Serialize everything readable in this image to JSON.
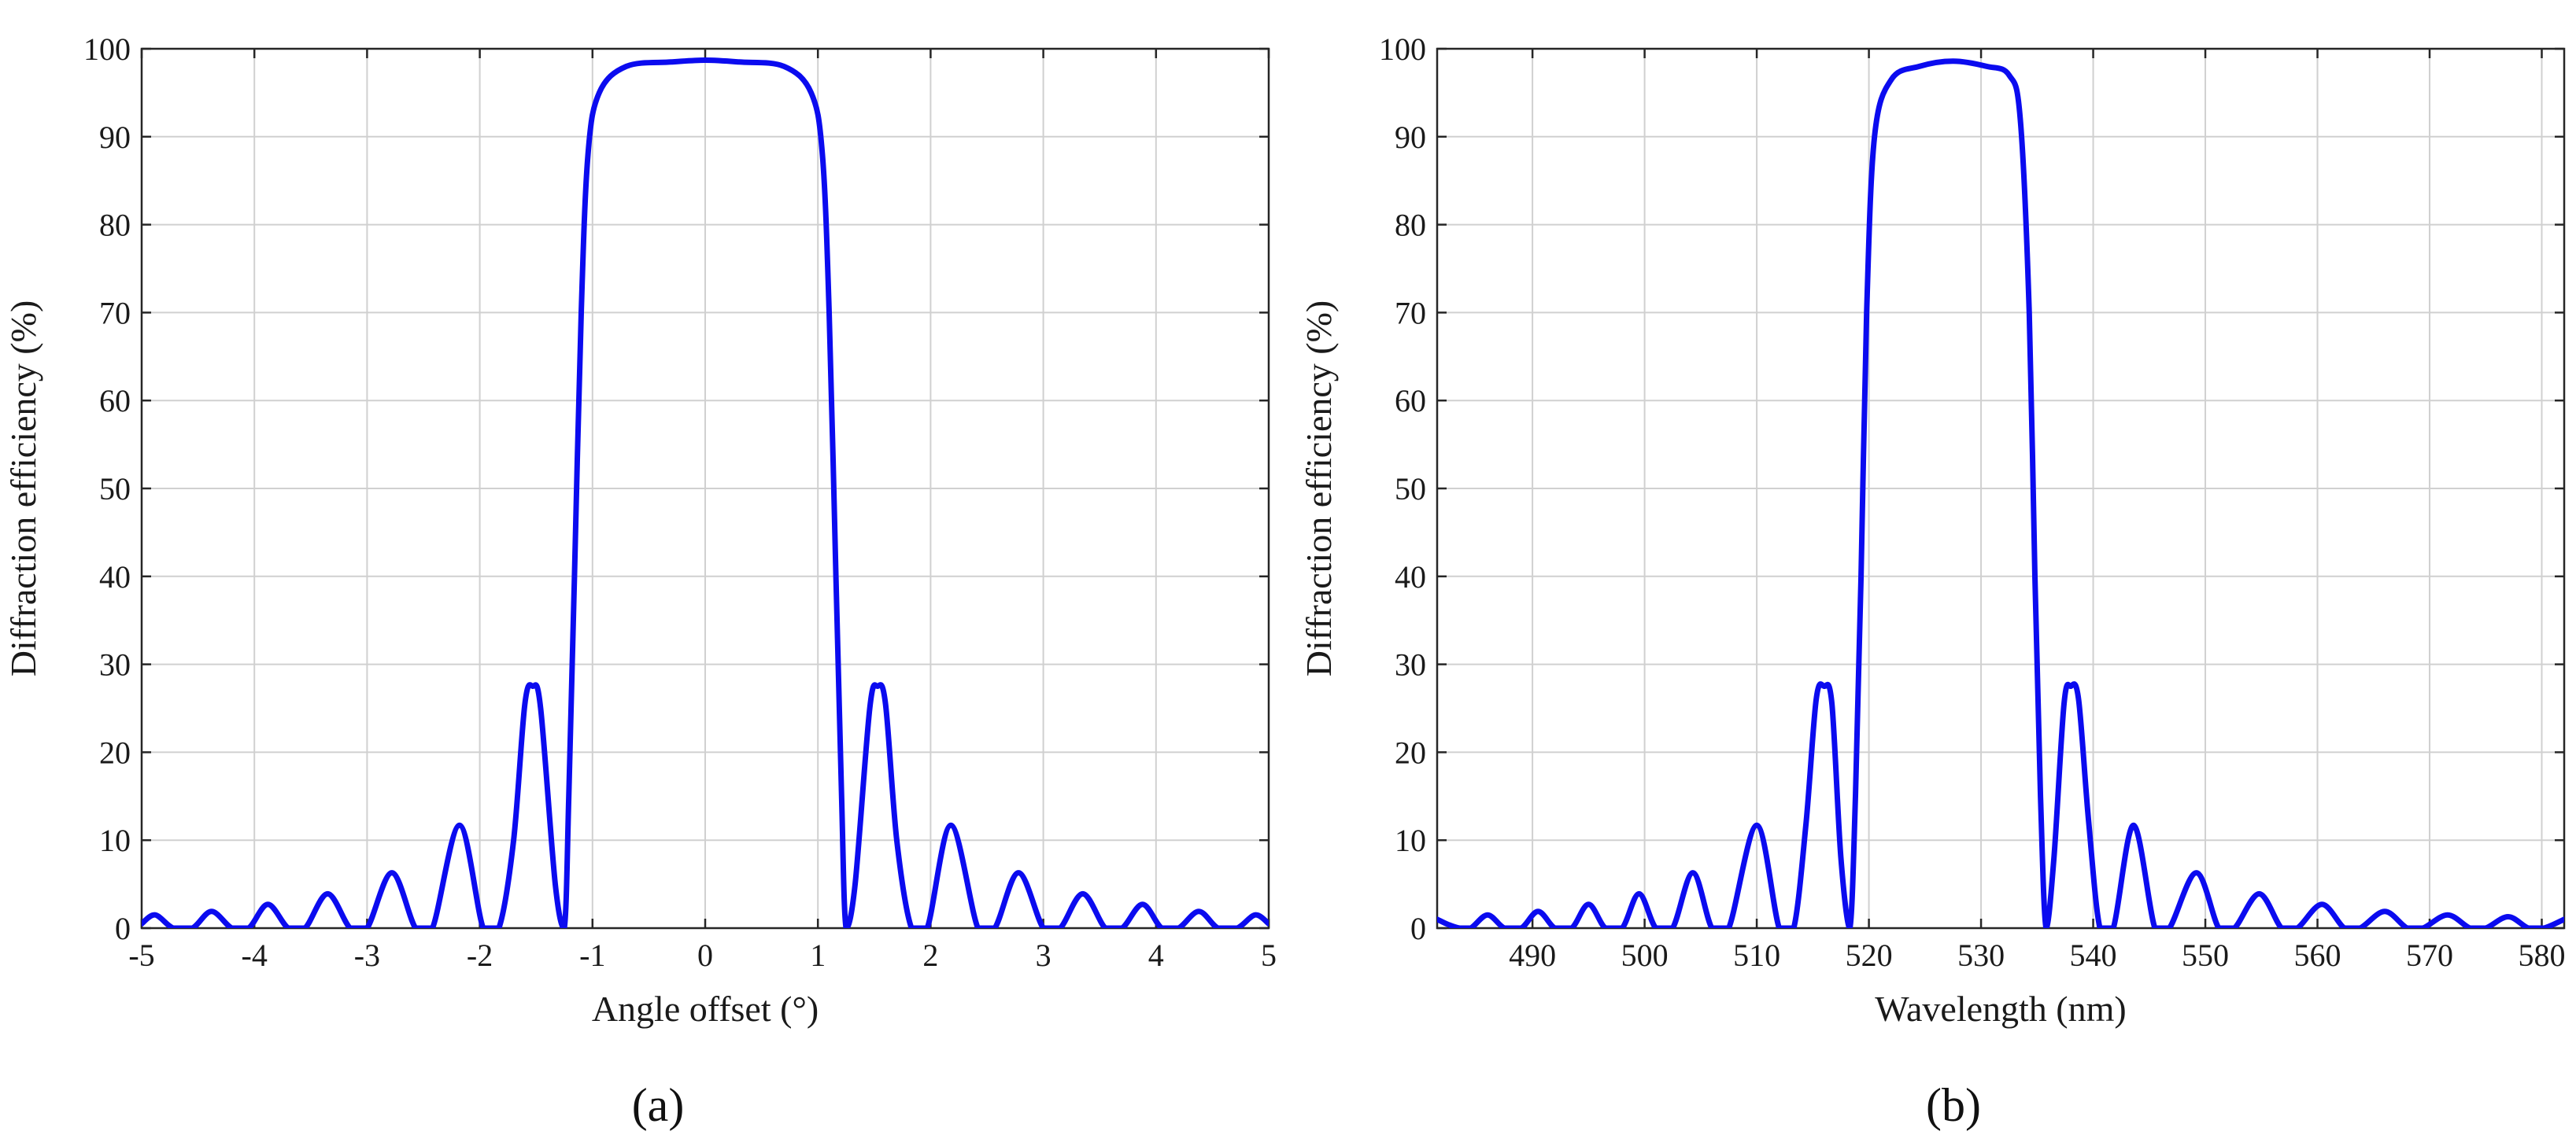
{
  "colors": {
    "curve": "#0b0bef",
    "grid": "#d0d0d0",
    "axis": "#262626"
  },
  "chart_data": [
    {
      "type": "line",
      "panel": "(a)",
      "title": "",
      "xlabel": "Angle offset (°)",
      "ylabel": "Diffraction efficiency (%)",
      "xlim": [
        -5,
        5
      ],
      "ylim": [
        0,
        100
      ],
      "grid": true,
      "xticks": [
        -5,
        -4,
        -3,
        -2,
        -1,
        0,
        1,
        2,
        3,
        4,
        5
      ],
      "xtick_labels": [
        "-5",
        "-4",
        "-3",
        "-2",
        "-1",
        "0",
        "1",
        "2",
        "3",
        "4",
        "5"
      ],
      "yticks": [
        0,
        10,
        20,
        30,
        40,
        50,
        60,
        70,
        80,
        90,
        100
      ],
      "ytick_labels": [
        "0",
        "10",
        "20",
        "30",
        "40",
        "50",
        "60",
        "70",
        "80",
        "90",
        "100"
      ],
      "series": [
        {
          "name": "Diffraction efficiency",
          "points": [
            [
              -5.0,
              0.5
            ],
            [
              -4.88,
              1.5
            ],
            [
              -4.72,
              0.0
            ],
            [
              -4.55,
              0.0
            ],
            [
              -4.38,
              1.9
            ],
            [
              -4.2,
              0.0
            ],
            [
              -4.05,
              0.0
            ],
            [
              -3.88,
              2.7
            ],
            [
              -3.7,
              0.0
            ],
            [
              -3.55,
              0.0
            ],
            [
              -3.35,
              3.9
            ],
            [
              -3.15,
              0.0
            ],
            [
              -3.0,
              0.0
            ],
            [
              -2.78,
              6.3
            ],
            [
              -2.57,
              0.0
            ],
            [
              -2.42,
              0.0
            ],
            [
              -2.18,
              11.7
            ],
            [
              -1.97,
              0.0
            ],
            [
              -1.83,
              0.0
            ],
            [
              -1.7,
              10.0
            ],
            [
              -1.6,
              25.5
            ],
            [
              -1.53,
              27.5
            ],
            [
              -1.46,
              25.0
            ],
            [
              -1.33,
              5.0
            ],
            [
              -1.25,
              0.0
            ],
            [
              -1.21,
              15.0
            ],
            [
              -1.16,
              40.0
            ],
            [
              -1.1,
              70.0
            ],
            [
              -1.04,
              88.0
            ],
            [
              -0.94,
              95.0
            ],
            [
              -0.7,
              98.0
            ],
            [
              -0.3,
              98.5
            ],
            [
              0.0,
              98.7
            ],
            [
              0.3,
              98.5
            ],
            [
              0.7,
              98.0
            ],
            [
              0.94,
              95.0
            ],
            [
              1.04,
              88.0
            ],
            [
              1.1,
              70.0
            ],
            [
              1.16,
              40.0
            ],
            [
              1.21,
              15.0
            ],
            [
              1.25,
              0.0
            ],
            [
              1.33,
              5.0
            ],
            [
              1.46,
              25.0
            ],
            [
              1.53,
              27.5
            ],
            [
              1.6,
              25.5
            ],
            [
              1.7,
              10.0
            ],
            [
              1.83,
              0.0
            ],
            [
              1.97,
              0.0
            ],
            [
              2.18,
              11.7
            ],
            [
              2.42,
              0.0
            ],
            [
              2.57,
              0.0
            ],
            [
              2.78,
              6.3
            ],
            [
              3.0,
              0.0
            ],
            [
              3.15,
              0.0
            ],
            [
              3.35,
              3.9
            ],
            [
              3.55,
              0.0
            ],
            [
              3.7,
              0.0
            ],
            [
              3.88,
              2.7
            ],
            [
              4.05,
              0.0
            ],
            [
              4.2,
              0.0
            ],
            [
              4.38,
              1.9
            ],
            [
              4.55,
              0.0
            ],
            [
              4.72,
              0.0
            ],
            [
              4.88,
              1.5
            ],
            [
              5.0,
              0.5
            ]
          ]
        }
      ]
    },
    {
      "type": "line",
      "panel": "(b)",
      "title": "",
      "xlabel": "Wavelength (nm)",
      "ylabel": "Diffraction efficiency (%)",
      "xlim": [
        481.5,
        582
      ],
      "ylim": [
        0,
        100
      ],
      "grid": true,
      "xticks": [
        490,
        500,
        510,
        520,
        530,
        540,
        550,
        560,
        570,
        580
      ],
      "xtick_labels": [
        "490",
        "500",
        "510",
        "520",
        "530",
        "540",
        "550",
        "560",
        "570",
        "580"
      ],
      "yticks": [
        0,
        10,
        20,
        30,
        40,
        50,
        60,
        70,
        80,
        90,
        100
      ],
      "ytick_labels": [
        "0",
        "10",
        "20",
        "30",
        "40",
        "50",
        "60",
        "70",
        "80",
        "90",
        "100"
      ],
      "series": [
        {
          "name": "Diffraction efficiency",
          "points": [
            [
              481.5,
              1.0
            ],
            [
              482.5,
              0.4
            ],
            [
              483.5,
              0.0
            ],
            [
              484.5,
              0.0
            ],
            [
              486.0,
              1.5
            ],
            [
              487.5,
              0.0
            ],
            [
              489.0,
              0.0
            ],
            [
              490.5,
              1.9
            ],
            [
              492.0,
              0.0
            ],
            [
              493.5,
              0.0
            ],
            [
              495.0,
              2.7
            ],
            [
              496.5,
              0.0
            ],
            [
              498.0,
              0.0
            ],
            [
              499.5,
              3.9
            ],
            [
              501.0,
              0.0
            ],
            [
              502.5,
              0.0
            ],
            [
              504.3,
              6.3
            ],
            [
              506.0,
              0.0
            ],
            [
              507.5,
              0.0
            ],
            [
              510.0,
              11.7
            ],
            [
              512.0,
              0.0
            ],
            [
              513.3,
              0.0
            ],
            [
              514.4,
              12.0
            ],
            [
              515.3,
              26.0
            ],
            [
              516.0,
              27.5
            ],
            [
              516.7,
              25.5
            ],
            [
              517.5,
              8.0
            ],
            [
              518.3,
              0.0
            ],
            [
              518.8,
              15.0
            ],
            [
              519.3,
              40.0
            ],
            [
              519.8,
              70.0
            ],
            [
              520.5,
              90.0
            ],
            [
              522.0,
              96.5
            ],
            [
              524.5,
              98.0
            ],
            [
              527.5,
              98.6
            ],
            [
              530.5,
              98.0
            ],
            [
              532.5,
              97.0
            ],
            [
              533.5,
              92.0
            ],
            [
              534.3,
              70.0
            ],
            [
              534.8,
              40.0
            ],
            [
              535.3,
              15.0
            ],
            [
              535.8,
              0.0
            ],
            [
              536.5,
              8.0
            ],
            [
              537.4,
              25.5
            ],
            [
              538.0,
              27.5
            ],
            [
              538.7,
              26.0
            ],
            [
              539.6,
              12.0
            ],
            [
              540.6,
              0.0
            ],
            [
              541.8,
              0.0
            ],
            [
              543.6,
              11.7
            ],
            [
              545.5,
              0.0
            ],
            [
              546.8,
              0.0
            ],
            [
              549.2,
              6.3
            ],
            [
              551.2,
              0.0
            ],
            [
              552.6,
              0.0
            ],
            [
              554.8,
              3.9
            ],
            [
              556.8,
              0.0
            ],
            [
              558.2,
              0.0
            ],
            [
              560.4,
              2.7
            ],
            [
              562.4,
              0.0
            ],
            [
              563.8,
              0.0
            ],
            [
              566.0,
              1.9
            ],
            [
              568.0,
              0.0
            ],
            [
              569.4,
              0.0
            ],
            [
              571.6,
              1.5
            ],
            [
              573.6,
              0.0
            ],
            [
              575.0,
              0.0
            ],
            [
              577.0,
              1.3
            ],
            [
              578.8,
              0.0
            ],
            [
              580.2,
              0.0
            ],
            [
              582.0,
              1.0
            ]
          ]
        }
      ]
    }
  ]
}
